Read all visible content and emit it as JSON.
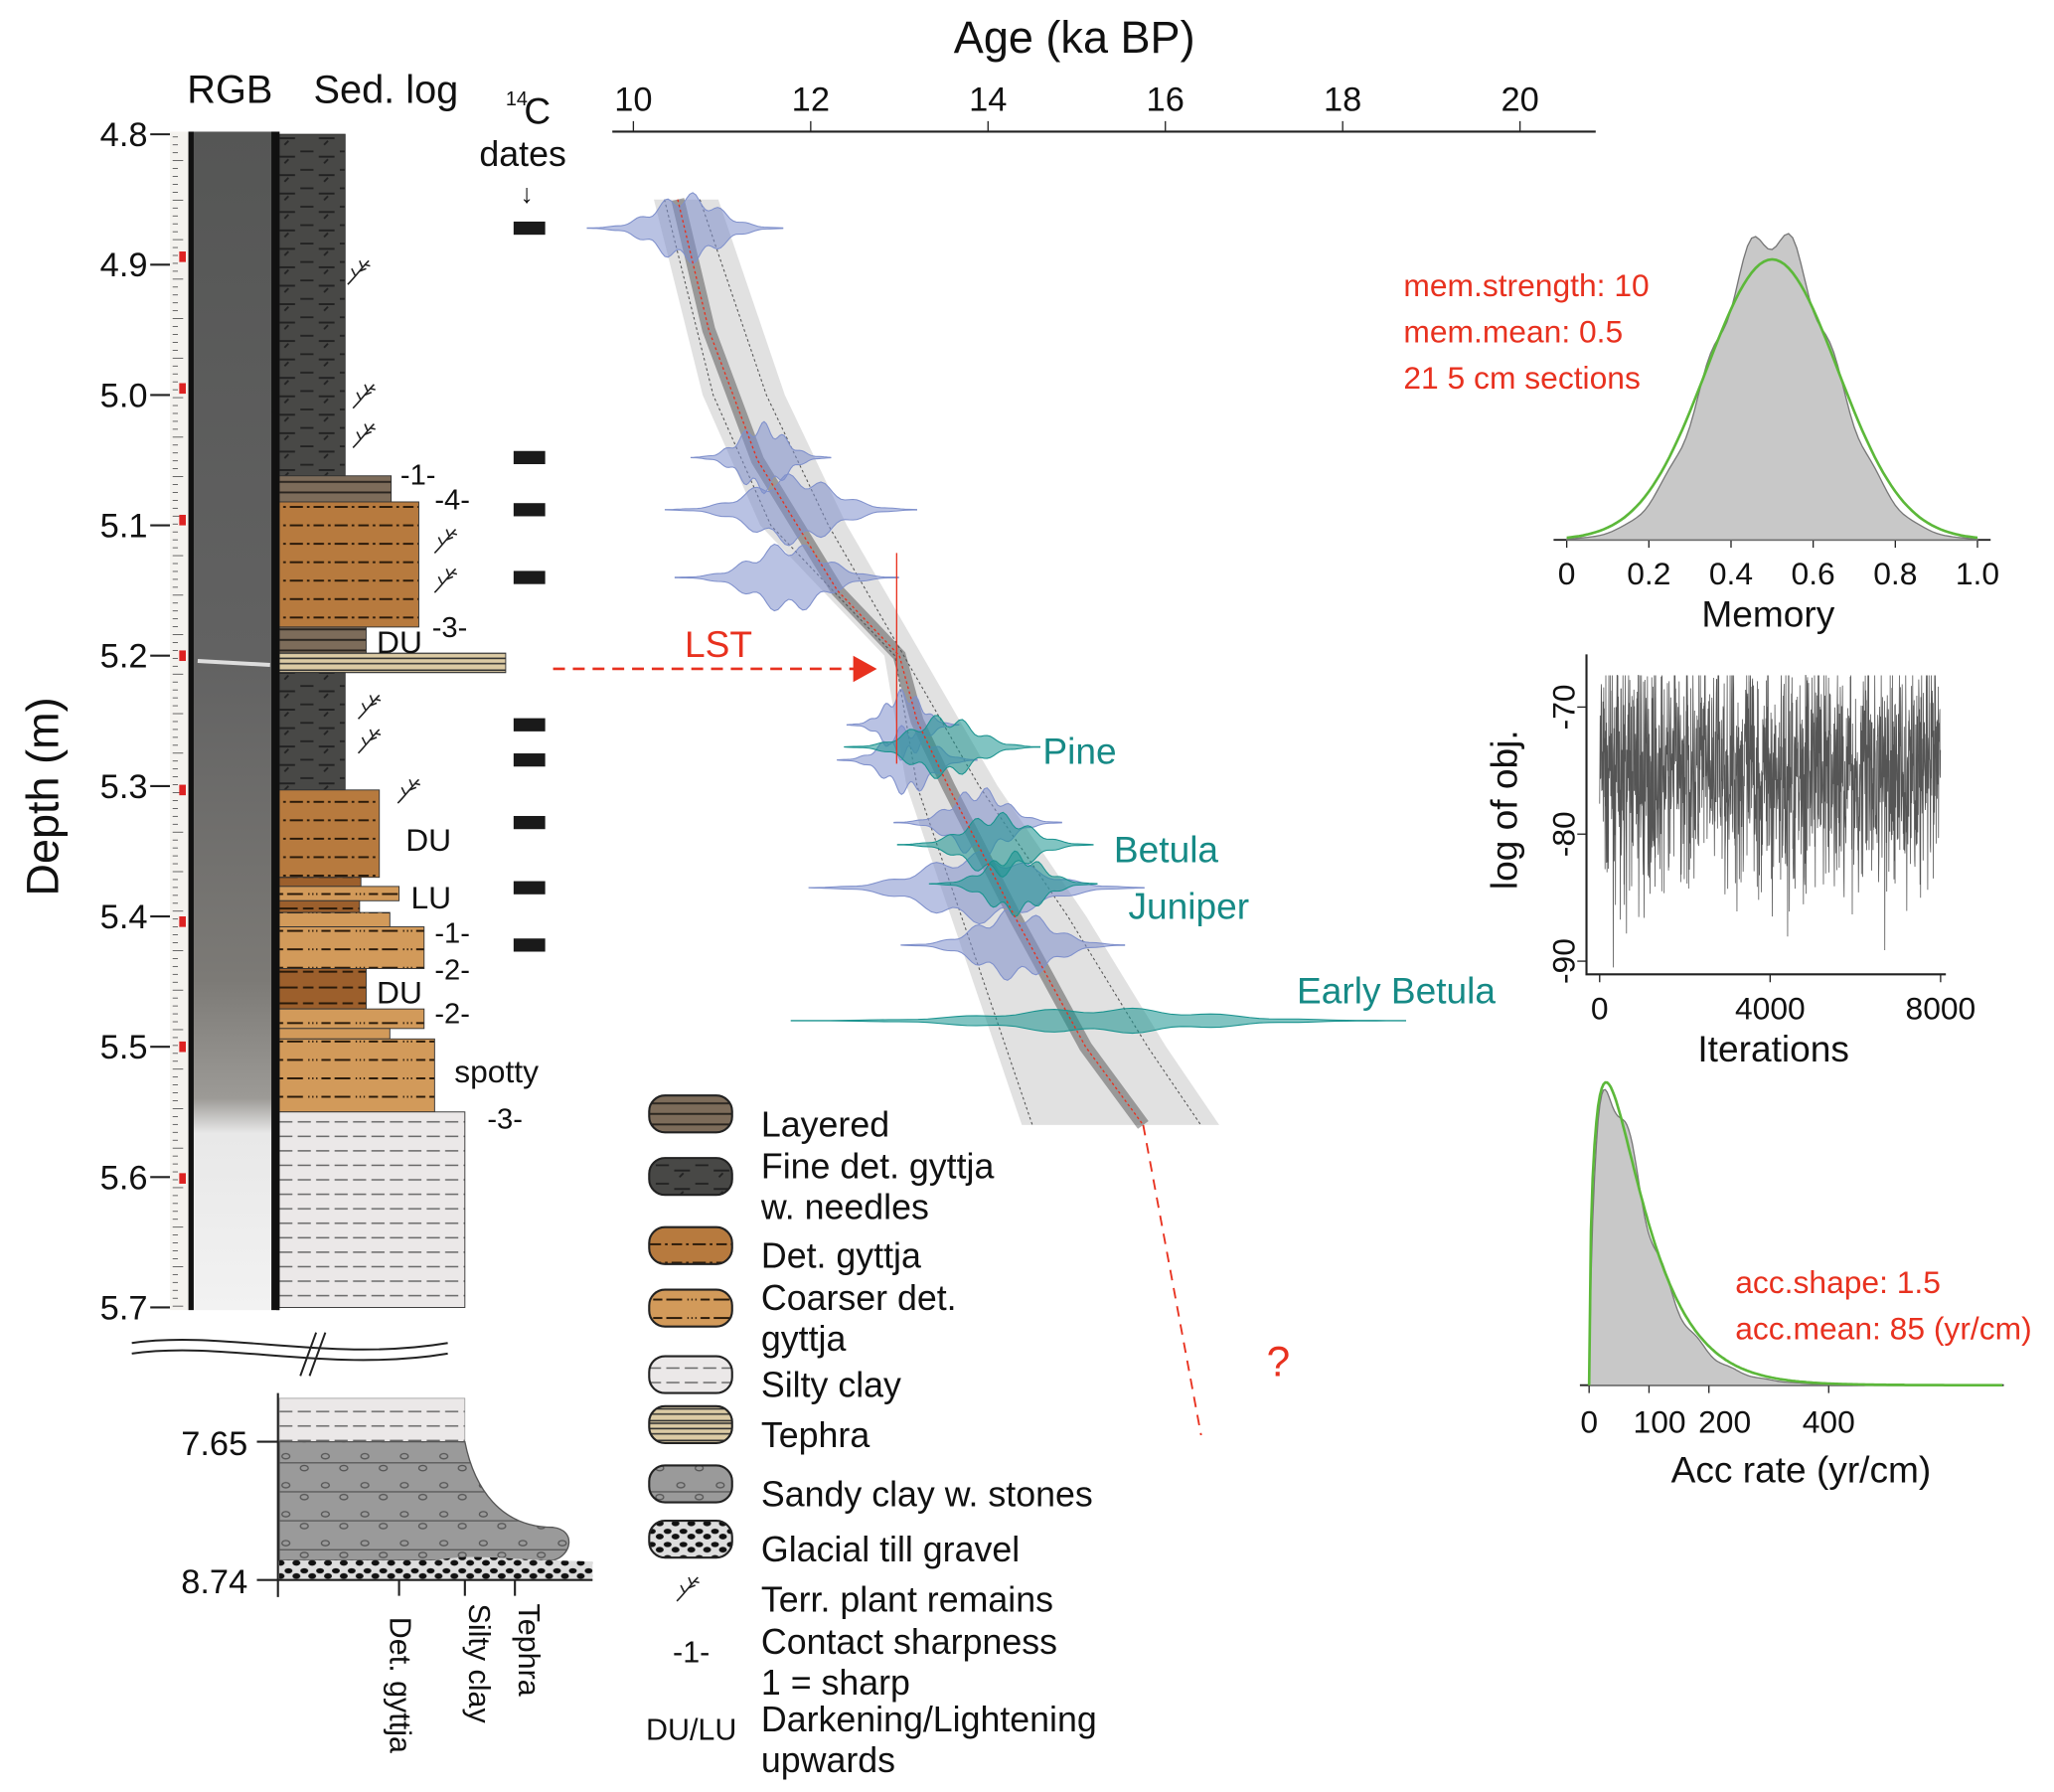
{
  "headers": {
    "rgb": "RGB",
    "sed_log": "Sed. log",
    "c14_sup": "14",
    "c14_c": "C",
    "dates": "dates",
    "arrow": "↓"
  },
  "depth_axis": {
    "label": "Depth (m)",
    "ticks": [
      "4.8",
      "4.9",
      "5.0",
      "5.1",
      "5.2",
      "5.3",
      "5.4",
      "5.5",
      "5.6",
      "5.7"
    ],
    "lower_ticks": [
      "7.65",
      "8.74"
    ]
  },
  "sed_annotations": [
    "-1-",
    "-4-",
    "DU",
    "-3-",
    "DU",
    "LU",
    "-1-",
    "-2-",
    "DU",
    "-2-",
    "spotty",
    "-3-"
  ],
  "lower_labels": [
    "Det. gyttja",
    "Silty clay",
    "Tephra"
  ],
  "sed_layers": [
    [
      4.8,
      5.062,
      "fine"
    ],
    [
      5.062,
      5.082,
      "layered"
    ],
    [
      5.082,
      5.178,
      "det"
    ],
    [
      5.178,
      5.198,
      "layered"
    ],
    [
      5.198,
      5.213,
      "tephra"
    ],
    [
      5.213,
      5.303,
      "fine"
    ],
    [
      5.303,
      5.37,
      "det"
    ],
    [
      5.37,
      5.377,
      "darkdet"
    ],
    [
      5.377,
      5.388,
      "coarser"
    ],
    [
      5.388,
      5.397,
      "darkdet"
    ],
    [
      5.397,
      5.408,
      "coarser"
    ],
    [
      5.408,
      5.44,
      "coarser"
    ],
    [
      5.44,
      5.471,
      "darkdet"
    ],
    [
      5.471,
      5.486,
      "coarser"
    ],
    [
      5.486,
      5.494,
      "coarser"
    ],
    [
      5.494,
      5.55,
      "coarser"
    ],
    [
      5.55,
      5.7,
      "silty"
    ]
  ],
  "legend": [
    {
      "key": "layered",
      "lines": [
        "Layered"
      ]
    },
    {
      "key": "fine",
      "lines": [
        "Fine det. gyttja",
        "w. needles"
      ]
    },
    {
      "key": "det",
      "lines": [
        "Det. gyttja"
      ]
    },
    {
      "key": "coarser",
      "lines": [
        "Coarser det.",
        "gyttja"
      ]
    },
    {
      "key": "silty",
      "lines": [
        "Silty clay"
      ]
    },
    {
      "key": "tephra",
      "lines": [
        "Tephra"
      ]
    },
    {
      "key": "sandy",
      "lines": [
        "Sandy clay w. stones"
      ]
    },
    {
      "key": "gravel",
      "lines": [
        "Glacial till gravel"
      ]
    },
    {
      "key": "plant",
      "lines": [
        "Terr. plant remains"
      ]
    },
    {
      "key": "contact",
      "symbol": "-1-",
      "lines": [
        "Contact sharpness",
        "1 = sharp"
      ]
    },
    {
      "key": "dulu",
      "symbol": "DU/LU",
      "lines": [
        "Darkening/Lightening",
        "upwards"
      ]
    }
  ],
  "colors": {
    "fine": "#484846",
    "layered": "#7d6c5a",
    "det": "#b77a3e",
    "darkdet": "#9c5f2c",
    "coarser": "#d29a5a",
    "silty": "#ebe8e8",
    "tephra": "#dccba4",
    "sandy": "#9a9a9a",
    "red": "#e8311f",
    "teal": "#1a938f",
    "blue": "#7f90cc",
    "green": "#5cb83a"
  },
  "annotations": {
    "lst": "LST",
    "question": "?"
  },
  "chart_data": [
    {
      "type": "age-depth",
      "title": "Age (ka BP)",
      "xlabel": "Age (ka BP)",
      "ylabel": "Depth (m)",
      "xlim": [
        10,
        20.8
      ],
      "ylim": [
        4.8,
        5.7
      ],
      "xticks": [
        "10",
        "12",
        "14",
        "16",
        "18",
        "20"
      ],
      "mean_model": [
        [
          4.85,
          10.5
        ],
        [
          4.95,
          10.85
        ],
        [
          5.05,
          11.4
        ],
        [
          5.1,
          11.85
        ],
        [
          5.15,
          12.3
        ],
        [
          5.2,
          13.0
        ],
        [
          5.25,
          13.2
        ],
        [
          5.3,
          13.55
        ],
        [
          5.4,
          14.3
        ],
        [
          5.5,
          15.1
        ],
        [
          5.56,
          15.75
        ]
      ],
      "model_min": [
        [
          4.85,
          10.35
        ],
        [
          5.0,
          10.9
        ],
        [
          5.1,
          11.55
        ],
        [
          5.2,
          12.95
        ],
        [
          5.3,
          13.2
        ],
        [
          5.4,
          13.7
        ],
        [
          5.5,
          14.2
        ],
        [
          5.56,
          14.5
        ]
      ],
      "model_max": [
        [
          4.85,
          10.75
        ],
        [
          5.0,
          11.5
        ],
        [
          5.1,
          12.2
        ],
        [
          5.2,
          13.05
        ],
        [
          5.3,
          13.9
        ],
        [
          5.4,
          14.9
        ],
        [
          5.5,
          15.8
        ],
        [
          5.56,
          16.4
        ]
      ],
      "radiocarbon_dates": [
        {
          "depth": 4.872,
          "age": 10.6,
          "sd": 0.35
        },
        {
          "depth": 5.048,
          "age": 11.45,
          "sd": 0.25
        },
        {
          "depth": 5.088,
          "age": 11.8,
          "sd": 0.45
        },
        {
          "depth": 5.14,
          "age": 11.75,
          "sd": 0.4
        },
        {
          "depth": 5.253,
          "age": 13.05,
          "sd": 0.2
        },
        {
          "depth": 5.28,
          "age": 13.1,
          "sd": 0.25
        },
        {
          "depth": 5.328,
          "age": 13.9,
          "sd": 0.3
        },
        {
          "depth": 5.378,
          "age": 13.9,
          "sd": 0.6
        },
        {
          "depth": 5.422,
          "age": 14.3,
          "sd": 0.4
        }
      ],
      "pollen_markers": [
        {
          "label": "Pine",
          "depth": 5.27,
          "age": 13.5,
          "sd": 0.35
        },
        {
          "label": "Betula",
          "depth": 5.345,
          "age": 14.1,
          "sd": 0.35
        },
        {
          "label": "Juniper",
          "depth": 5.375,
          "age": 14.3,
          "sd": 0.3
        },
        {
          "label": "Early Betula",
          "depth": 5.48,
          "age": 15.3,
          "sd": 1.1
        }
      ],
      "lst_depth": 5.207,
      "lst_age": 13.0,
      "extrapolation_end": [
        5.8,
        16.7
      ]
    },
    {
      "type": "area",
      "xlabel": "Memory",
      "xlim": [
        0,
        1.0
      ],
      "xticks": [
        "0",
        "0.2",
        "0.4",
        "0.6",
        "0.8",
        "1.0"
      ],
      "posterior": "gray density peaking near 0.5",
      "prior": {
        "dist": "beta",
        "mean": 0.5,
        "strength": 10
      },
      "annotations": [
        "mem.strength: 10",
        "mem.mean: 0.5",
        "21 5 cm sections"
      ]
    },
    {
      "type": "line",
      "xlabel": "Iterations",
      "ylabel": "log of obj.",
      "xlim": [
        0,
        8000
      ],
      "ylim": [
        -91,
        -67
      ],
      "xticks": [
        "0",
        "4000",
        "8000"
      ],
      "yticks": [
        "-70",
        "-80",
        "-90"
      ],
      "trace_mean": -75,
      "trace_range": [
        -90,
        -68
      ]
    },
    {
      "type": "area",
      "xlabel": "Acc rate (yr/cm)",
      "xlim": [
        0,
        690
      ],
      "xticks": [
        "0",
        "100",
        "200",
        "400"
      ],
      "prior": {
        "dist": "gamma",
        "shape": 1.5,
        "mean": 85
      },
      "annotations": [
        "acc.shape: 1.5",
        "acc.mean: 85 (yr/cm)"
      ]
    }
  ]
}
